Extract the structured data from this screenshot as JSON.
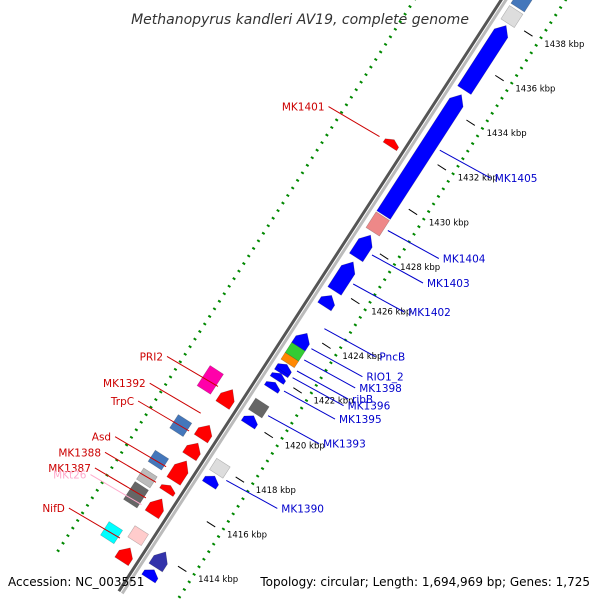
{
  "title": "Methanopyrus kandleri AV19, complete genome",
  "footer": {
    "accession": "Accession: NC_003551",
    "stats": "Topology: circular; Length: 1,694,969 bp; Genes: 1,725"
  },
  "colors": {
    "backbone": "#999999",
    "cds_forward": "#0000ff",
    "cds_reverse": "#ff0000",
    "label_forward": "#0000cc",
    "label_reverse": "#cc0000",
    "tick_dots": "#008800"
  },
  "ticks": [
    {
      "kbp": 1414,
      "label": "1414 kbp"
    },
    {
      "kbp": 1416,
      "label": "1416 kbp"
    },
    {
      "kbp": 1418,
      "label": "1418 kbp"
    },
    {
      "kbp": 1420,
      "label": "1420 kbp"
    },
    {
      "kbp": 1422,
      "label": "1422 kbp"
    },
    {
      "kbp": 1424,
      "label": "1424 kbp"
    },
    {
      "kbp": 1426,
      "label": "1426 kbp"
    },
    {
      "kbp": 1428,
      "label": "1428 kbp"
    },
    {
      "kbp": 1430,
      "label": "1430 kbp"
    },
    {
      "kbp": 1432,
      "label": "1432 kbp"
    },
    {
      "kbp": 1434,
      "label": "1434 kbp"
    },
    {
      "kbp": 1436,
      "label": "1436 kbp"
    },
    {
      "kbp": 1438,
      "label": "1438 kbp"
    }
  ],
  "genes_forward": [
    {
      "start": 1413.0,
      "end": 1413.4,
      "type": "cds",
      "color": "#0000ff"
    },
    {
      "start": 1413.5,
      "end": 1414.2,
      "type": "cds",
      "color": "#3333aa"
    },
    {
      "start": 1417.2,
      "end": 1417.6,
      "type": "cds",
      "color": "#0000ff"
    },
    {
      "start": 1417.7,
      "end": 1418.2,
      "type": "other",
      "color": "#dddddd"
    },
    {
      "start": 1419.9,
      "end": 1420.3,
      "type": "cds",
      "color": "#0000ff"
    },
    {
      "start": 1420.4,
      "end": 1420.9,
      "type": "other",
      "color": "#666666"
    },
    {
      "start": 1421.5,
      "end": 1421.8,
      "type": "cds",
      "color": "#0000ff"
    },
    {
      "start": 1421.9,
      "end": 1422.2,
      "type": "cds",
      "color": "#0000ff"
    },
    {
      "start": 1422.2,
      "end": 1422.6,
      "type": "cds",
      "color": "#0000ff"
    },
    {
      "start": 1422.3,
      "end": 1422.6,
      "type": "cds",
      "color": "#0000ff"
    },
    {
      "start": 1422.65,
      "end": 1422.95,
      "type": "other",
      "color": "#ff8800"
    },
    {
      "start": 1422.95,
      "end": 1423.4,
      "type": "other",
      "color": "#33cc33"
    },
    {
      "start": 1423.4,
      "end": 1424.0,
      "type": "cds",
      "color": "#0000ff"
    },
    {
      "start": 1425.2,
      "end": 1425.7,
      "type": "cds",
      "color": "#0000ff"
    },
    {
      "start": 1425.9,
      "end": 1427.2,
      "type": "cds",
      "color": "#0000ff"
    },
    {
      "start": 1427.4,
      "end": 1428.4,
      "type": "cds",
      "color": "#0000ff"
    },
    {
      "start": 1428.55,
      "end": 1429.25,
      "type": "other",
      "color": "#ee8888"
    },
    {
      "start": 1429.3,
      "end": 1434.7,
      "type": "cds",
      "color": "#0000ff"
    },
    {
      "start": 1434.9,
      "end": 1437.8,
      "type": "cds",
      "color": "#0000ff"
    },
    {
      "start": 1437.9,
      "end": 1438.5,
      "type": "other",
      "color": "#dddddd"
    },
    {
      "start": 1438.6,
      "end": 1439.2,
      "type": "other",
      "color": "#4477bb"
    }
  ],
  "genes_reverse": [
    {
      "start": 1413.0,
      "end": 1413.6,
      "type": "cds",
      "color": "#ff0000"
    },
    {
      "start": 1413.9,
      "end": 1414.4,
      "type": "other",
      "color": "#ffcccc"
    },
    {
      "start": 1415.1,
      "end": 1415.8,
      "type": "cds",
      "color": "#ff0000"
    },
    {
      "start": 1416.1,
      "end": 1416.4,
      "type": "cds",
      "color": "#ff0000"
    },
    {
      "start": 1416.6,
      "end": 1417.5,
      "type": "cds",
      "color": "#ff0000"
    },
    {
      "start": 1417.7,
      "end": 1418.3,
      "type": "cds",
      "color": "#ff0000"
    },
    {
      "start": 1418.5,
      "end": 1419.1,
      "type": "cds",
      "color": "#ff0000"
    },
    {
      "start": 1420.0,
      "end": 1420.7,
      "type": "cds",
      "color": "#ff0000"
    },
    {
      "start": 1431.6,
      "end": 1431.9,
      "type": "cds",
      "color": "#ff0000"
    }
  ],
  "genes_outer": [
    {
      "start": 1413.4,
      "end": 1414.0,
      "type": "other",
      "color": "#00ffff"
    },
    {
      "start": 1415.0,
      "end": 1415.8,
      "type": "other",
      "color": "#666666"
    },
    {
      "start": 1415.9,
      "end": 1416.4,
      "type": "other",
      "color": "#bbbbbb"
    },
    {
      "start": 1416.7,
      "end": 1417.2,
      "type": "other",
      "color": "#4477bb"
    },
    {
      "start": 1418.2,
      "end": 1418.8,
      "type": "other",
      "color": "#4477bb"
    },
    {
      "start": 1420.1,
      "end": 1421.0,
      "type": "other",
      "color": "#ff00aa"
    }
  ],
  "labels_left": [
    {
      "text": "MK1401",
      "color": "#cc0000",
      "kbp": 1431.7
    },
    {
      "text": "PRI2",
      "color": "#cc0000",
      "kbp": 1420.5
    },
    {
      "text": "MK1392",
      "color": "#cc0000",
      "kbp": 1419.3
    },
    {
      "text": "TrpC",
      "color": "#cc0000",
      "kbp": 1418.5
    },
    {
      "text": "Asd",
      "color": "#cc0000",
      "kbp": 1416.9
    },
    {
      "text": "MK1388",
      "color": "#cc0000",
      "kbp": 1416.2
    },
    {
      "text": "MK1387",
      "color": "#cc0000",
      "kbp": 1415.5
    },
    {
      "text": "MKt26",
      "color": "#ffaacc",
      "kbp": 1415.2
    },
    {
      "text": "NifD",
      "color": "#cc0000",
      "kbp": 1413.7
    }
  ],
  "labels_right": [
    {
      "text": "MK1405",
      "color": "#0000cc",
      "kbp": 1432.5
    },
    {
      "text": "MK1404",
      "color": "#0000cc",
      "kbp": 1428.9
    },
    {
      "text": "MK1403",
      "color": "#0000cc",
      "kbp": 1427.8
    },
    {
      "text": "MK1402",
      "color": "#0000cc",
      "kbp": 1426.5
    },
    {
      "text": "PncB",
      "color": "#0000cc",
      "kbp": 1424.5
    },
    {
      "text": "RIO1_2",
      "color": "#0000cc",
      "kbp": 1423.6
    },
    {
      "text": "MK1398",
      "color": "#0000cc",
      "kbp": 1423.1
    },
    {
      "text": "ribB",
      "color": "#0000cc",
      "kbp": 1422.6
    },
    {
      "text": "MK1396",
      "color": "#0000cc",
      "kbp": 1422.3
    },
    {
      "text": "MK1395",
      "color": "#0000cc",
      "kbp": 1421.7
    },
    {
      "text": "MK1393",
      "color": "#0000cc",
      "kbp": 1420.6
    },
    {
      "text": "MK1390",
      "color": "#0000cc",
      "kbp": 1417.7
    }
  ]
}
